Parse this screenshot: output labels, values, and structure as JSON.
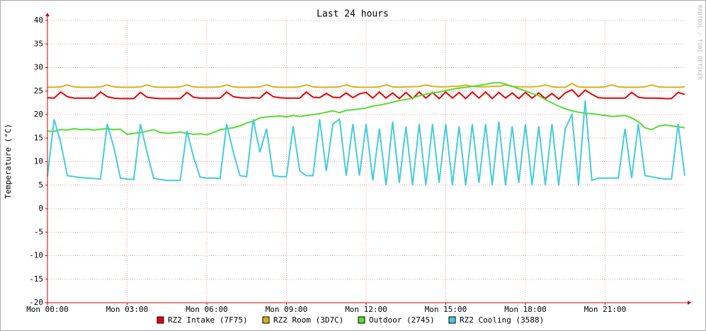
{
  "chart_data": {
    "type": "line",
    "title": "Last 24 hours",
    "y_label": "Temperature (°C)",
    "watermark": "RRDTOOL / TOBI OETIKER",
    "x": [
      0,
      0.25,
      0.5,
      0.75,
      1,
      1.25,
      1.5,
      1.75,
      2,
      2.25,
      2.5,
      2.75,
      3,
      3.25,
      3.5,
      3.75,
      4,
      4.25,
      4.5,
      4.75,
      5,
      5.25,
      5.5,
      5.75,
      6,
      6.25,
      6.5,
      6.75,
      7,
      7.25,
      7.5,
      7.75,
      8,
      8.25,
      8.5,
      8.75,
      9,
      9.25,
      9.5,
      9.75,
      10,
      10.25,
      10.5,
      10.75,
      11,
      11.25,
      11.5,
      11.75,
      12,
      12.25,
      12.5,
      12.75,
      13,
      13.25,
      13.5,
      13.75,
      14,
      14.25,
      14.5,
      14.75,
      15,
      15.25,
      15.5,
      15.75,
      16,
      16.25,
      16.5,
      16.75,
      17,
      17.25,
      17.5,
      17.75,
      18,
      18.25,
      18.5,
      18.75,
      19,
      19.25,
      19.5,
      19.75,
      20,
      20.25,
      20.5,
      20.75,
      21,
      21.25,
      21.5,
      21.75,
      22,
      22.25,
      22.5,
      22.75,
      23,
      23.25,
      23.5,
      23.75,
      24
    ],
    "xlim": [
      0,
      24
    ],
    "xticks": [
      {
        "value": 0,
        "label": "Mon 00:00"
      },
      {
        "value": 3,
        "label": "Mon 03:00"
      },
      {
        "value": 6,
        "label": "Mon 06:00"
      },
      {
        "value": 9,
        "label": "Mon 09:00"
      },
      {
        "value": 12,
        "label": "Mon 12:00"
      },
      {
        "value": 15,
        "label": "Mon 15:00"
      },
      {
        "value": 18,
        "label": "Mon 18:00"
      },
      {
        "value": 21,
        "label": "Mon 21:00"
      }
    ],
    "ylim": [
      -20,
      40
    ],
    "yticks": [
      -20,
      -15,
      -10,
      -5,
      0,
      5,
      10,
      15,
      20,
      25,
      30,
      35,
      40
    ],
    "grid": true,
    "legend": "bottom",
    "series": [
      {
        "name": "RZ2 Intake (7F75)",
        "color": "#e80000",
        "values": [
          23.6,
          23.5,
          24.8,
          23.8,
          23.5,
          23.5,
          23.5,
          23.5,
          24.8,
          23.8,
          23.5,
          23.4,
          23.4,
          23.4,
          24.7,
          23.7,
          23.5,
          23.4,
          23.4,
          23.4,
          23.4,
          24.7,
          23.7,
          23.5,
          23.5,
          23.5,
          23.5,
          24.8,
          23.8,
          23.6,
          23.5,
          23.6,
          23.5,
          24.8,
          23.8,
          23.6,
          23.5,
          23.5,
          23.5,
          24.8,
          23.7,
          23.6,
          24.5,
          23.7,
          23.6,
          24.6,
          23.6,
          24.4,
          24.7,
          23.5,
          24.8,
          23.5,
          24.6,
          23.4,
          24.7,
          23.4,
          24.8,
          23.5,
          24.7,
          23.4,
          24.8,
          23.5,
          24.7,
          23.4,
          24.8,
          23.5,
          24.8,
          23.4,
          24.7,
          23.5,
          24.6,
          23.4,
          24.7,
          23.5,
          24.6,
          23.4,
          24.5,
          23.3,
          24.6,
          25.3,
          23.8,
          25.2,
          24.3,
          23.6,
          23.5,
          23.5,
          23.5,
          23.5,
          24.7,
          23.7,
          23.5,
          23.5,
          23.5,
          23.4,
          23.4,
          24.7,
          24.3
        ]
      },
      {
        "name": "RZ2 Room (3D7C)",
        "color": "#d8b01c",
        "values": [
          25.8,
          25.8,
          25.9,
          26.3,
          25.9,
          25.8,
          25.8,
          25.8,
          25.9,
          26.3,
          25.9,
          25.8,
          25.8,
          25.8,
          25.9,
          26.3,
          25.9,
          25.8,
          25.8,
          25.8,
          25.9,
          26.3,
          25.9,
          25.8,
          25.8,
          25.8,
          25.9,
          26.3,
          25.9,
          25.8,
          25.8,
          25.8,
          25.9,
          26.3,
          25.9,
          25.8,
          25.8,
          25.8,
          25.9,
          26.3,
          25.9,
          25.8,
          25.8,
          25.8,
          25.9,
          26.3,
          25.9,
          25.8,
          25.8,
          25.8,
          25.9,
          26.3,
          25.9,
          25.8,
          25.9,
          25.9,
          26,
          26.3,
          26,
          25.9,
          25.9,
          26,
          26,
          26.3,
          26,
          25.9,
          25.9,
          26,
          26,
          26.3,
          26,
          25.9,
          25.9,
          25.9,
          26,
          26.3,
          25.9,
          25.8,
          25.8,
          26.6,
          25.9,
          25.8,
          25.8,
          25.8,
          25.9,
          26.3,
          25.9,
          25.8,
          25.8,
          25.8,
          25.9,
          26.3,
          25.9,
          25.8,
          25.8,
          25.8,
          25.9
        ]
      },
      {
        "name": "Outdoor (2745)",
        "color": "#55dd33",
        "values": [
          16.5,
          16.4,
          16.8,
          16.7,
          17,
          16.8,
          16.9,
          16.7,
          16.9,
          17,
          16.8,
          16.9,
          15.8,
          16,
          16.2,
          16.5,
          16.8,
          16.2,
          16,
          16.1,
          16.3,
          16,
          15.8,
          15.9,
          15.7,
          16.2,
          16.8,
          17,
          17.2,
          17.6,
          18.2,
          18.6,
          19.3,
          19.5,
          19.6,
          19.7,
          19.5,
          19.8,
          19.6,
          19.8,
          20,
          20.2,
          20.5,
          20.8,
          20.4,
          20.9,
          21,
          21.2,
          21.4,
          21.8,
          22,
          22.3,
          22.6,
          23,
          23.2,
          23.5,
          24,
          24.3,
          24.6,
          24.8,
          25.1,
          25.4,
          25.6,
          25.8,
          26,
          26.2,
          26.4,
          26.7,
          26.8,
          26.5,
          26,
          25.5,
          25,
          24.5,
          24,
          23.2,
          22.5,
          21.8,
          21.2,
          20.8,
          20.5,
          20.3,
          20.2,
          20,
          19.8,
          19.6,
          19.7,
          19.8,
          19.3,
          18.5,
          17.2,
          16.8,
          17.5,
          17.8,
          17.6,
          17.4,
          17.2
        ]
      },
      {
        "name": "RZ2 Cooling (3588)",
        "color": "#44ccdd",
        "values": [
          6.8,
          19,
          14,
          7,
          6.8,
          6.6,
          6.5,
          6.4,
          6.3,
          18,
          13,
          6.5,
          6.3,
          6.2,
          18,
          12,
          6.5,
          6.2,
          6,
          6,
          6,
          16.5,
          11,
          6.7,
          6.5,
          6.5,
          6.4,
          18,
          12,
          7,
          6.8,
          19,
          12,
          17,
          7,
          6.8,
          6.8,
          17.5,
          8,
          7,
          7,
          19,
          8,
          18,
          19,
          7,
          18,
          7,
          18,
          6,
          17,
          5,
          18.5,
          5.5,
          17.5,
          5,
          18,
          5,
          18,
          5.5,
          18,
          5,
          17.5,
          5,
          18,
          5.5,
          18,
          5,
          18.5,
          5,
          17.5,
          5.5,
          18,
          5,
          17.5,
          5,
          18,
          5,
          17,
          20,
          5,
          23,
          6,
          6.5,
          6.5,
          6.5,
          6.5,
          17,
          6.5,
          18,
          7,
          6.8,
          6.5,
          6.3,
          6.3,
          18,
          7
        ]
      }
    ]
  }
}
